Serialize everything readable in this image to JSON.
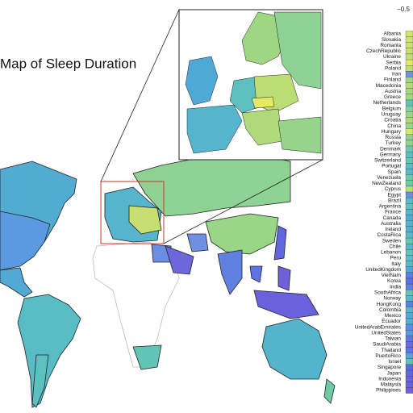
{
  "title": "Map of Sleep Duration",
  "colorbar_tick": "−0.5",
  "countries": [
    {
      "name": "Albania",
      "color": "#d4e46c"
    },
    {
      "name": "Slovakia",
      "color": "#cde26e"
    },
    {
      "name": "Romania",
      "color": "#cde26e"
    },
    {
      "name": "CzechRepublic",
      "color": "#c6df70"
    },
    {
      "name": "Ukraine",
      "color": "#c2de72"
    },
    {
      "name": "Serbia",
      "color": "#e2ea66"
    },
    {
      "name": "Poland",
      "color": "#bcdc74"
    },
    {
      "name": "Iran",
      "color": "#6f8fe0"
    },
    {
      "name": "Finland",
      "color": "#9fd684"
    },
    {
      "name": "Macedonia",
      "color": "#b4da78"
    },
    {
      "name": "Austria",
      "color": "#a6d880"
    },
    {
      "name": "Greece",
      "color": "#a4d882"
    },
    {
      "name": "Netherlands",
      "color": "#5fc4b6"
    },
    {
      "name": "Belgium",
      "color": "#86d0a0"
    },
    {
      "name": "Uruguay",
      "color": "#9cd688"
    },
    {
      "name": "Croatia",
      "color": "#b0da7a"
    },
    {
      "name": "China",
      "color": "#9ad688"
    },
    {
      "name": "Hungary",
      "color": "#d8e66a"
    },
    {
      "name": "Russia",
      "color": "#8ed294"
    },
    {
      "name": "Turkey",
      "color": "#96d48c"
    },
    {
      "name": "Denmark",
      "color": "#6cc8ae"
    },
    {
      "name": "Germany",
      "color": "#5cc0c0"
    },
    {
      "name": "Switzerland",
      "color": "#62c6b4"
    },
    {
      "name": "Portugal",
      "color": "#58bcc6"
    },
    {
      "name": "Spain",
      "color": "#56b8ca"
    },
    {
      "name": "Venezuela",
      "color": "#6ccaa8"
    },
    {
      "name": "NewZealand",
      "color": "#70caa6"
    },
    {
      "name": "Cyprus",
      "color": "#b8dc76"
    },
    {
      "name": "Egypt",
      "color": "#6a8ee0"
    },
    {
      "name": "Brazil",
      "color": "#58bcc4"
    },
    {
      "name": "Argentina",
      "color": "#5ac0c0"
    },
    {
      "name": "France",
      "color": "#56b4cc"
    },
    {
      "name": "Canada",
      "color": "#52acd2"
    },
    {
      "name": "Australia",
      "color": "#54b4cc"
    },
    {
      "name": "Ireland",
      "color": "#52b0d0"
    },
    {
      "name": "CostaRica",
      "color": "#5ab8c8"
    },
    {
      "name": "Sweden",
      "color": "#68c8ac"
    },
    {
      "name": "Chile",
      "color": "#56b6ca"
    },
    {
      "name": "Lebanon",
      "color": "#60c2b8"
    },
    {
      "name": "Peru",
      "color": "#5abcc4"
    },
    {
      "name": "Italy",
      "color": "#58bac6"
    },
    {
      "name": "UnitedKingdom",
      "color": "#50a8d6"
    },
    {
      "name": "VietNam",
      "color": "#5c7ee2"
    },
    {
      "name": "Korea",
      "color": "#5c6ee0"
    },
    {
      "name": "India",
      "color": "#6080e0"
    },
    {
      "name": "SouthAfrica",
      "color": "#62c4b6"
    },
    {
      "name": "Norway",
      "color": "#58b8c8"
    },
    {
      "name": "HongKong",
      "color": "#5a80e2"
    },
    {
      "name": "Colombia",
      "color": "#56b6ca"
    },
    {
      "name": "Mexico",
      "color": "#52aad4"
    },
    {
      "name": "Ecuador",
      "color": "#54b0d0"
    },
    {
      "name": "UnitedArabEmirates",
      "color": "#5a8ce0"
    },
    {
      "name": "UnitedStates",
      "color": "#5a9ae0"
    },
    {
      "name": "Taiwan",
      "color": "#5c78e2"
    },
    {
      "name": "SaudiArabia",
      "color": "#6c68dc"
    },
    {
      "name": "Thailand",
      "color": "#5e74e2"
    },
    {
      "name": "PuertoRico",
      "color": "#56a4dc"
    },
    {
      "name": "Israel",
      "color": "#62c2b8"
    },
    {
      "name": "Singapore",
      "color": "#5a6ce0"
    },
    {
      "name": "Japan",
      "color": "#6066de"
    },
    {
      "name": "Indonesia",
      "color": "#6a62dc"
    },
    {
      "name": "Malaysia",
      "color": "#6a60dc"
    },
    {
      "name": "Philippines",
      "color": "#7060da"
    }
  ]
}
